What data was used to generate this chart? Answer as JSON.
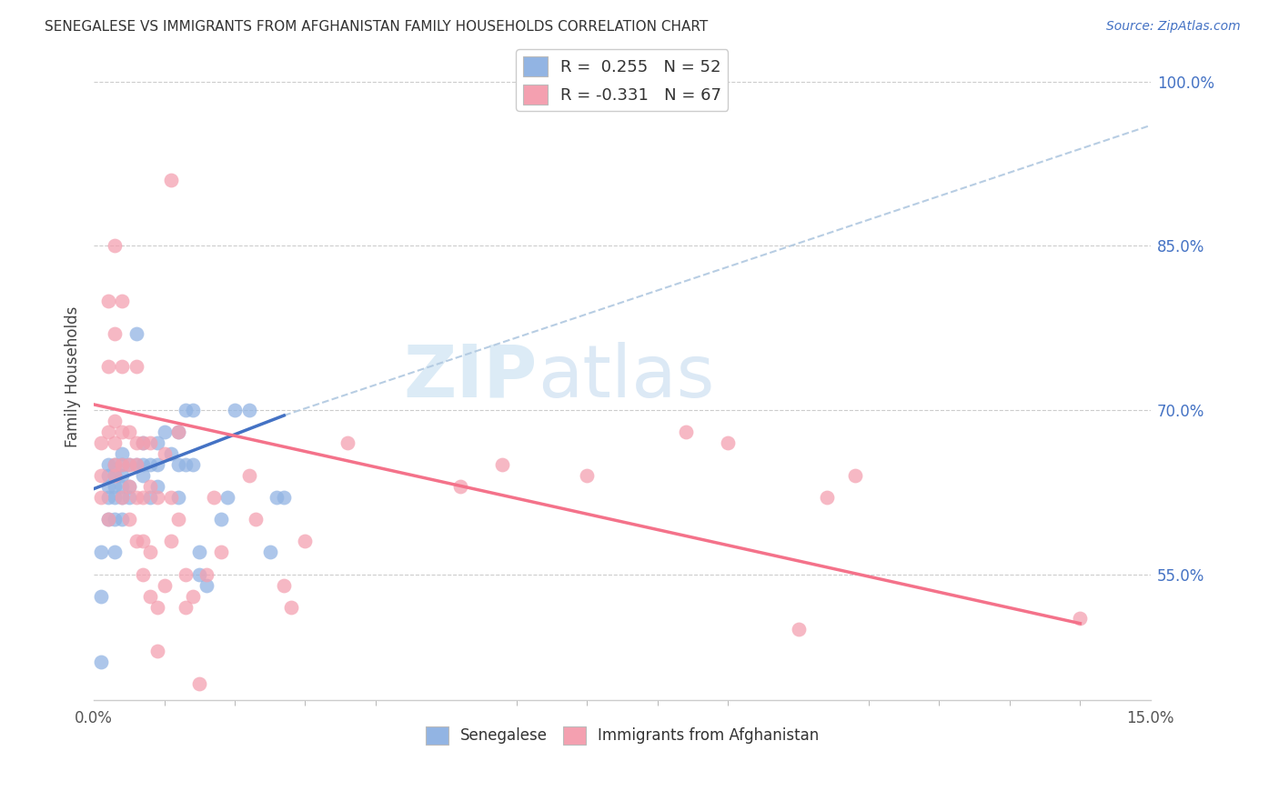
{
  "title": "SENEGALESE VS IMMIGRANTS FROM AFGHANISTAN FAMILY HOUSEHOLDS CORRELATION CHART",
  "source": "Source: ZipAtlas.com",
  "ylabel": "Family Households",
  "xlim": [
    0.0,
    0.15
  ],
  "ylim": [
    0.435,
    1.025
  ],
  "ytick_vals": [
    0.55,
    0.7,
    0.85,
    1.0
  ],
  "legend_label1": "Senegalese",
  "legend_label2": "Immigrants from Afghanistan",
  "R1": 0.255,
  "N1": 52,
  "R2": -0.331,
  "N2": 67,
  "color_blue": "#92b4e3",
  "color_pink": "#f4a0b0",
  "line_blue": "#4472c4",
  "line_pink": "#f4728a",
  "line_dashed": "#b0c8e0",
  "watermark_zip": "ZIP",
  "watermark_atlas": "atlas",
  "blue_x": [
    0.001,
    0.001,
    0.001,
    0.002,
    0.002,
    0.002,
    0.002,
    0.002,
    0.003,
    0.003,
    0.003,
    0.003,
    0.003,
    0.003,
    0.004,
    0.004,
    0.004,
    0.004,
    0.004,
    0.004,
    0.005,
    0.005,
    0.005,
    0.006,
    0.006,
    0.007,
    0.007,
    0.007,
    0.008,
    0.008,
    0.009,
    0.009,
    0.009,
    0.01,
    0.011,
    0.012,
    0.012,
    0.012,
    0.013,
    0.013,
    0.014,
    0.014,
    0.015,
    0.015,
    0.016,
    0.018,
    0.019,
    0.02,
    0.022,
    0.025,
    0.026,
    0.027
  ],
  "blue_y": [
    0.47,
    0.53,
    0.57,
    0.6,
    0.62,
    0.63,
    0.64,
    0.65,
    0.57,
    0.6,
    0.62,
    0.63,
    0.64,
    0.65,
    0.6,
    0.62,
    0.63,
    0.64,
    0.65,
    0.66,
    0.62,
    0.63,
    0.65,
    0.65,
    0.77,
    0.64,
    0.65,
    0.67,
    0.62,
    0.65,
    0.63,
    0.65,
    0.67,
    0.68,
    0.66,
    0.62,
    0.65,
    0.68,
    0.65,
    0.7,
    0.65,
    0.7,
    0.55,
    0.57,
    0.54,
    0.6,
    0.62,
    0.7,
    0.7,
    0.57,
    0.62,
    0.62
  ],
  "pink_x": [
    0.001,
    0.001,
    0.001,
    0.002,
    0.002,
    0.002,
    0.002,
    0.003,
    0.003,
    0.003,
    0.003,
    0.003,
    0.003,
    0.004,
    0.004,
    0.004,
    0.004,
    0.004,
    0.005,
    0.005,
    0.005,
    0.005,
    0.006,
    0.006,
    0.006,
    0.006,
    0.006,
    0.007,
    0.007,
    0.007,
    0.007,
    0.008,
    0.008,
    0.008,
    0.008,
    0.009,
    0.009,
    0.009,
    0.01,
    0.01,
    0.011,
    0.011,
    0.011,
    0.012,
    0.012,
    0.013,
    0.013,
    0.014,
    0.015,
    0.016,
    0.017,
    0.018,
    0.022,
    0.023,
    0.027,
    0.028,
    0.03,
    0.036,
    0.052,
    0.058,
    0.07,
    0.084,
    0.09,
    0.1,
    0.104,
    0.108,
    0.14
  ],
  "pink_y": [
    0.62,
    0.64,
    0.67,
    0.6,
    0.68,
    0.74,
    0.8,
    0.64,
    0.65,
    0.67,
    0.69,
    0.77,
    0.85,
    0.62,
    0.65,
    0.68,
    0.74,
    0.8,
    0.6,
    0.63,
    0.65,
    0.68,
    0.58,
    0.62,
    0.65,
    0.67,
    0.74,
    0.55,
    0.58,
    0.62,
    0.67,
    0.53,
    0.57,
    0.63,
    0.67,
    0.48,
    0.52,
    0.62,
    0.54,
    0.66,
    0.58,
    0.62,
    0.91,
    0.6,
    0.68,
    0.52,
    0.55,
    0.53,
    0.45,
    0.55,
    0.62,
    0.57,
    0.64,
    0.6,
    0.54,
    0.52,
    0.58,
    0.67,
    0.63,
    0.65,
    0.64,
    0.68,
    0.67,
    0.5,
    0.62,
    0.64,
    0.51
  ],
  "blue_line_x0": 0.0,
  "blue_line_y0": 0.628,
  "blue_line_x1": 0.027,
  "blue_line_y1": 0.695,
  "pink_line_x0": 0.0,
  "pink_line_y0": 0.705,
  "pink_line_x1": 0.14,
  "pink_line_y1": 0.505,
  "dashed_line_x0": 0.027,
  "dashed_line_y0": 0.695,
  "dashed_line_x1": 0.15,
  "dashed_line_y1": 0.96
}
